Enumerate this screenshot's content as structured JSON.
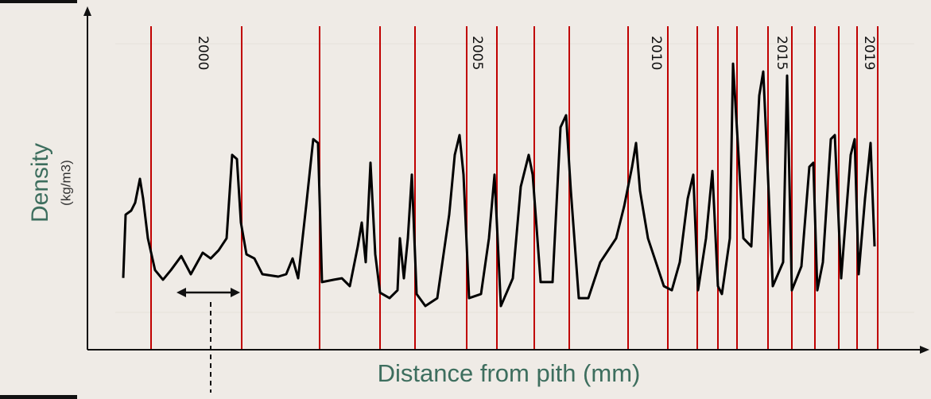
{
  "chart_data": {
    "type": "line",
    "x_label": "Distance from pith (mm)",
    "y_label": "Density",
    "y_unit": "(kg/m3)",
    "xlim": [
      0,
      1050
    ],
    "ylim": [
      0,
      100
    ],
    "line_color": "#000000",
    "boundary_color": "#c00000",
    "ring_boundaries": [
      80,
      194,
      292,
      368,
      412,
      477,
      515,
      562,
      606,
      680,
      730,
      767,
      793,
      817,
      856,
      886,
      915,
      945,
      968,
      994
    ],
    "year_labels": [
      {
        "text": "2000",
        "x": 145
      },
      {
        "text": "2005",
        "x": 490
      },
      {
        "text": "2010",
        "x": 715
      },
      {
        "text": "2015",
        "x": 873
      },
      {
        "text": "2019",
        "x": 983
      }
    ],
    "x": [
      45,
      48,
      55,
      60,
      66,
      70,
      76,
      85,
      95,
      105,
      118,
      130,
      145,
      155,
      165,
      175,
      182,
      188,
      193,
      200,
      210,
      220,
      240,
      250,
      258,
      265,
      275,
      284,
      290,
      295,
      310,
      320,
      330,
      340,
      345,
      350,
      356,
      362,
      368,
      380,
      390,
      393,
      398,
      403,
      408,
      414,
      425,
      440,
      455,
      462,
      468,
      473,
      480,
      495,
      505,
      512,
      520,
      535,
      545,
      555,
      560,
      570,
      585,
      595,
      602,
      608,
      618,
      630,
      645,
      665,
      675,
      685,
      690,
      695,
      705,
      725,
      735,
      745,
      755,
      762,
      768,
      778,
      786,
      793,
      798,
      808,
      812,
      818,
      825,
      835,
      845,
      850,
      855,
      862,
      875,
      880,
      886,
      898,
      908,
      913,
      918,
      925,
      935,
      940,
      948,
      960,
      965,
      970,
      978,
      985,
      990
    ],
    "values": [
      21,
      39.5,
      40.7,
      43,
      50,
      44.2,
      32.6,
      23.3,
      20.5,
      23.3,
      27.4,
      22.1,
      28.4,
      26.7,
      29.1,
      32.6,
      57,
      55.8,
      37.2,
      27.9,
      26.7,
      22.1,
      21.4,
      22.1,
      26.7,
      20.9,
      41.9,
      61.6,
      60.5,
      19.8,
      20.5,
      20.9,
      18.6,
      30.2,
      37.2,
      25.6,
      54.7,
      27.9,
      16.7,
      15.1,
      17.4,
      32.6,
      20.9,
      32.6,
      51.2,
      16.3,
      12.8,
      15.1,
      39.5,
      57,
      62.8,
      51.2,
      15.1,
      16.3,
      32.6,
      51.2,
      12.8,
      20.9,
      47.7,
      57,
      51.2,
      19.8,
      19.8,
      65.1,
      68.6,
      46.5,
      15.1,
      15.1,
      25.6,
      32.6,
      41.9,
      53.5,
      60.5,
      46.5,
      32.6,
      18.6,
      17.4,
      25.6,
      44.2,
      51.2,
      17.4,
      32.6,
      52.3,
      18.6,
      16.3,
      32.6,
      83.7,
      60.5,
      32.6,
      30.2,
      74.4,
      81.4,
      55.8,
      18.6,
      25.6,
      80.2,
      17.4,
      24.4,
      53.5,
      54.7,
      17.4,
      25.6,
      61.6,
      62.8,
      20.9,
      57,
      61.6,
      22.1,
      44.2,
      60.5,
      30.2
    ]
  }
}
